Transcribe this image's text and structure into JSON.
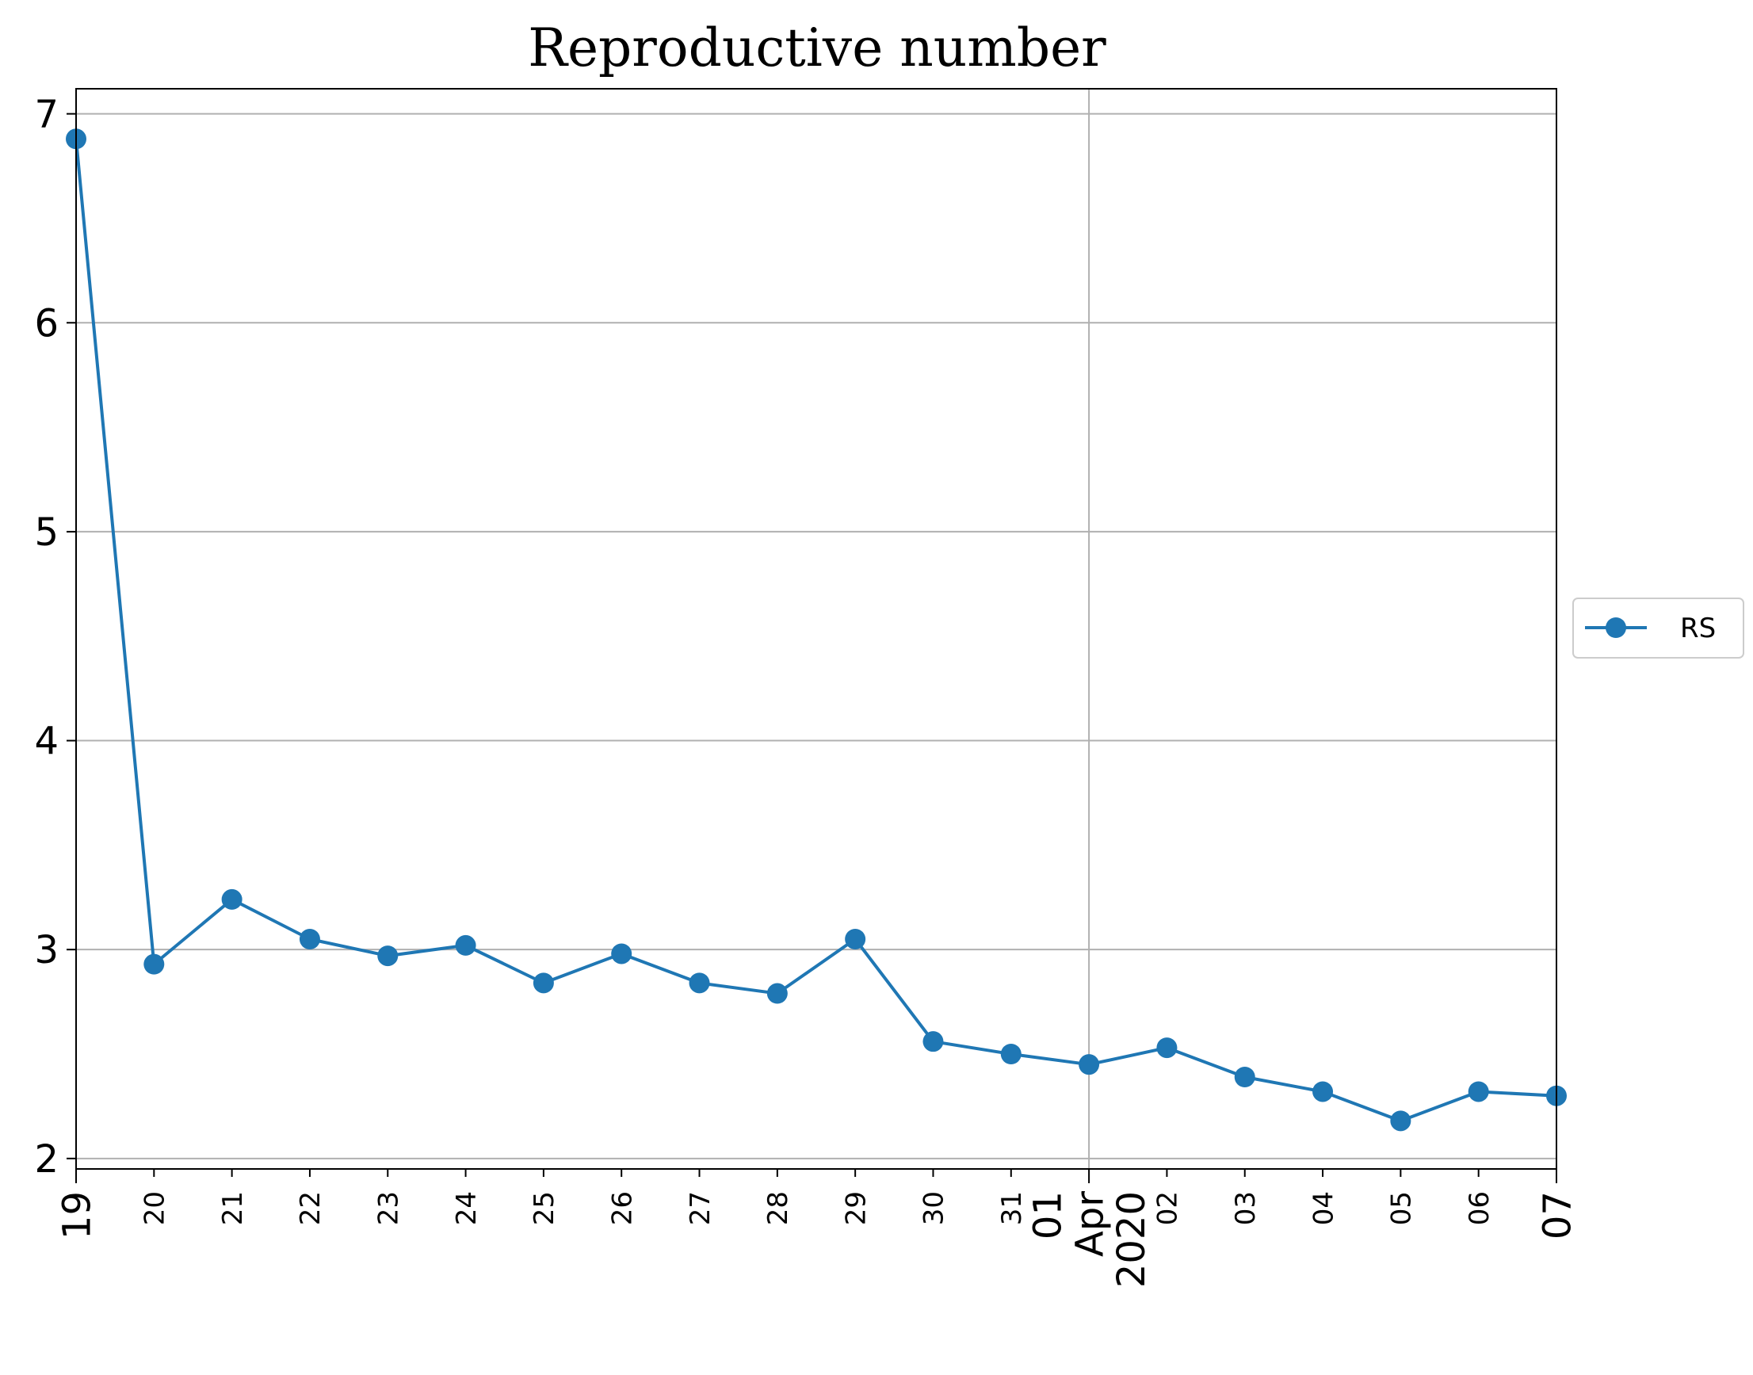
{
  "chart_data": {
    "type": "line",
    "title": "Reproductive number",
    "xlabel": "",
    "ylabel": "",
    "x": [
      "2020-03-19",
      "2020-03-20",
      "2020-03-21",
      "2020-03-22",
      "2020-03-23",
      "2020-03-24",
      "2020-03-25",
      "2020-03-26",
      "2020-03-27",
      "2020-03-28",
      "2020-03-29",
      "2020-03-30",
      "2020-03-31",
      "2020-04-01",
      "2020-04-02",
      "2020-04-03",
      "2020-04-04",
      "2020-04-05",
      "2020-04-06",
      "2020-04-07"
    ],
    "x_tick_labels": [
      {
        "lines": [
          "19"
        ],
        "major": true
      },
      {
        "lines": [
          "20"
        ],
        "major": false
      },
      {
        "lines": [
          "21"
        ],
        "major": false
      },
      {
        "lines": [
          "22"
        ],
        "major": false
      },
      {
        "lines": [
          "23"
        ],
        "major": false
      },
      {
        "lines": [
          "24"
        ],
        "major": false
      },
      {
        "lines": [
          "25"
        ],
        "major": false
      },
      {
        "lines": [
          "26"
        ],
        "major": false
      },
      {
        "lines": [
          "27"
        ],
        "major": false
      },
      {
        "lines": [
          "28"
        ],
        "major": false
      },
      {
        "lines": [
          "29"
        ],
        "major": false
      },
      {
        "lines": [
          "30"
        ],
        "major": false
      },
      {
        "lines": [
          "31"
        ],
        "major": false
      },
      {
        "lines": [
          "01",
          "Apr",
          "2020"
        ],
        "major": true
      },
      {
        "lines": [
          "02"
        ],
        "major": false
      },
      {
        "lines": [
          "03"
        ],
        "major": false
      },
      {
        "lines": [
          "04"
        ],
        "major": false
      },
      {
        "lines": [
          "05"
        ],
        "major": false
      },
      {
        "lines": [
          "06"
        ],
        "major": false
      },
      {
        "lines": [
          "07"
        ],
        "major": true
      }
    ],
    "series": [
      {
        "name": "RS",
        "color": "#1f77b4",
        "values": [
          6.88,
          2.93,
          3.24,
          3.05,
          2.97,
          3.02,
          2.84,
          2.98,
          2.84,
          2.79,
          3.05,
          2.56,
          2.5,
          2.45,
          2.53,
          2.39,
          2.32,
          2.18,
          2.32,
          2.3
        ]
      }
    ],
    "ylim": [
      1.95,
      7.12
    ],
    "yticks": [
      2,
      3,
      4,
      5,
      6,
      7
    ],
    "grid": true,
    "x_grid_at": [
      "2020-04-01"
    ],
    "legend_position": "center-right outside"
  }
}
